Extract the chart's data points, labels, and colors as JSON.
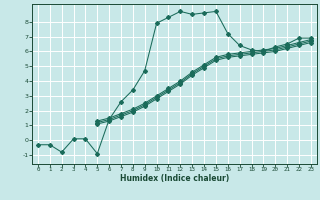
{
  "xlabel": "Humidex (Indice chaleur)",
  "background_color": "#c8e8e8",
  "grid_color": "#ffffff",
  "line_color": "#1a6b5a",
  "xlim": [
    -0.5,
    23.5
  ],
  "ylim": [
    -1.6,
    9.2
  ],
  "xticks": [
    0,
    1,
    2,
    3,
    4,
    5,
    6,
    7,
    8,
    9,
    10,
    11,
    12,
    13,
    14,
    15,
    16,
    17,
    18,
    19,
    20,
    21,
    22,
    23
  ],
  "yticks": [
    -1,
    0,
    1,
    2,
    3,
    4,
    5,
    6,
    7,
    8
  ],
  "series1_x": [
    0,
    1,
    2,
    3,
    4,
    5,
    6,
    7,
    8,
    9,
    10,
    11,
    12,
    13,
    14,
    15,
    16,
    17,
    18,
    19,
    20,
    21,
    22,
    23
  ],
  "series1_y": [
    -0.3,
    -0.3,
    -0.8,
    0.1,
    0.1,
    -0.9,
    1.4,
    2.6,
    3.4,
    4.7,
    7.9,
    8.3,
    8.7,
    8.5,
    8.6,
    8.7,
    7.2,
    6.4,
    6.1,
    6.0,
    6.3,
    6.5,
    6.9,
    6.9
  ],
  "series2_x": [
    5,
    6,
    7,
    8,
    9,
    10,
    11,
    12,
    13,
    14,
    15,
    16,
    17,
    18,
    19,
    20,
    21,
    22,
    23
  ],
  "series2_y": [
    1.3,
    1.5,
    1.8,
    2.1,
    2.5,
    3.0,
    3.5,
    4.0,
    4.6,
    5.1,
    5.6,
    5.8,
    5.9,
    6.0,
    6.1,
    6.2,
    6.4,
    6.6,
    6.8
  ],
  "series3_x": [
    5,
    6,
    7,
    8,
    9,
    10,
    11,
    12,
    13,
    14,
    15,
    16,
    17,
    18,
    19,
    20,
    21,
    22,
    23
  ],
  "series3_y": [
    1.1,
    1.3,
    1.6,
    1.9,
    2.3,
    2.8,
    3.3,
    3.8,
    4.4,
    4.9,
    5.4,
    5.6,
    5.7,
    5.8,
    5.9,
    6.0,
    6.2,
    6.4,
    6.6
  ],
  "series4_x": [
    5,
    6,
    7,
    8,
    9,
    10,
    11,
    12,
    13,
    14,
    15,
    16,
    17,
    18,
    19,
    20,
    21,
    22,
    23
  ],
  "series4_y": [
    1.2,
    1.4,
    1.7,
    2.0,
    2.4,
    2.9,
    3.4,
    3.9,
    4.5,
    5.0,
    5.5,
    5.7,
    5.8,
    5.9,
    6.0,
    6.1,
    6.3,
    6.5,
    6.7
  ]
}
